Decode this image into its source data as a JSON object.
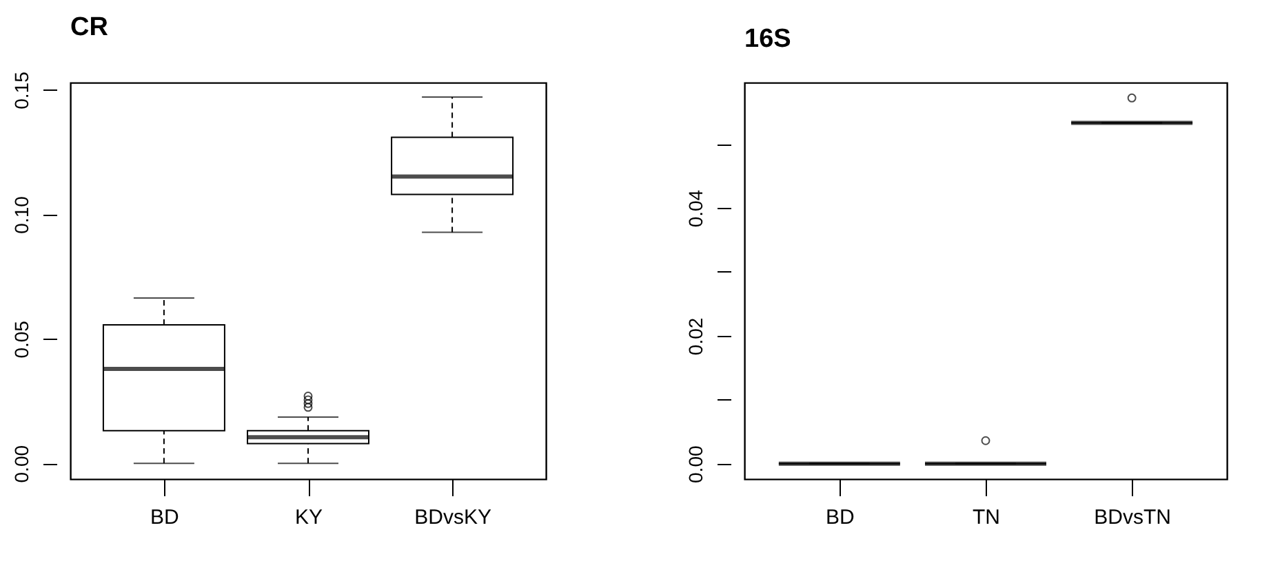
{
  "chart_data": [
    {
      "type": "box",
      "title": "CR",
      "categories": [
        "BD",
        "KY",
        "BDvsKY"
      ],
      "grid": false,
      "boxes": [
        {
          "low": 0,
          "q1": 0.0131,
          "median": 0.0379,
          "q3": 0.0556,
          "high": 0.0664
        },
        {
          "low": 0,
          "q1": 0.0079,
          "median": 0.0105,
          "q3": 0.0131,
          "high": 0.0186,
          "outliers": [
            0.0225,
            0.024,
            0.0255,
            0.027
          ]
        },
        {
          "low": 0.0928,
          "q1": 0.108,
          "median": 0.1152,
          "q3": 0.1309,
          "high": 0.1471
        }
      ],
      "ylim": [
        -0.0063,
        0.1529
      ],
      "yticks": [
        {
          "value": 0,
          "label": "0.00"
        },
        {
          "value": 0.05,
          "label": "0.05"
        },
        {
          "value": 0.1,
          "label": "0.10"
        },
        {
          "value": 0.15,
          "label": "0.15"
        }
      ]
    },
    {
      "type": "box",
      "title": "16S",
      "categories": [
        "BD",
        "TN",
        "BDvsTN"
      ],
      "grid": false,
      "boxes": [
        {
          "low": 0,
          "q1": 0,
          "median": 0,
          "q3": 0,
          "high": 0
        },
        {
          "low": 0,
          "q1": 0,
          "median": 0,
          "q3": 0,
          "high": 0,
          "outliers": [
            0.0036
          ]
        },
        {
          "low": 0.0533,
          "q1": 0.0533,
          "median": 0.0533,
          "q3": 0.0533,
          "high": 0.0533,
          "outliers": [
            0.0572
          ]
        }
      ],
      "ylim": [
        -0.0024,
        0.0596
      ],
      "yticks": [
        {
          "value": 0,
          "label": "0.00"
        },
        {
          "value": 0.01,
          "label": null
        },
        {
          "value": 0.02,
          "label": "0.02"
        },
        {
          "value": 0.03,
          "label": null
        },
        {
          "value": 0.04,
          "label": "0.04"
        },
        {
          "value": 0.05,
          "label": null
        }
      ]
    }
  ]
}
